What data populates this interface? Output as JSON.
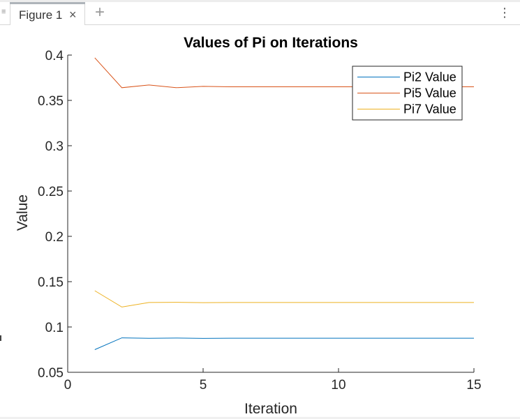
{
  "window": {
    "tab_title": "Figure 1",
    "close_glyph": "×",
    "add_glyph": "+",
    "menu_glyph": "⋮",
    "list_glyph": "≡"
  },
  "chart_data": {
    "type": "line",
    "title": "Values of Pi on Iterations",
    "xlabel": "Iteration",
    "ylabel": "Value",
    "xlim": [
      0,
      15
    ],
    "ylim": [
      0.05,
      0.4
    ],
    "xticks": [
      0,
      5,
      10,
      15
    ],
    "xtick_labels": [
      "0",
      "5",
      "10",
      "15"
    ],
    "yticks": [
      0.05,
      0.1,
      0.15,
      0.2,
      0.25,
      0.3,
      0.35,
      0.4
    ],
    "ytick_labels": [
      "0.05",
      "0.1",
      "0.15",
      "0.2",
      "0.25",
      "0.3",
      "0.35",
      "0.4"
    ],
    "grid": false,
    "legend_position": "top-right",
    "x": [
      1,
      2,
      3,
      4,
      5,
      6,
      7,
      8,
      9,
      10,
      11,
      12,
      13,
      14,
      15
    ],
    "series": [
      {
        "name": "Pi2 Value",
        "color": "#0072BD",
        "values": [
          0.075,
          0.088,
          0.0875,
          0.0878,
          0.0874,
          0.0876,
          0.0876,
          0.0876,
          0.0876,
          0.0876,
          0.0876,
          0.0876,
          0.0876,
          0.0876,
          0.0876
        ]
      },
      {
        "name": "Pi5 Value",
        "color": "#D95319",
        "values": [
          0.397,
          0.364,
          0.367,
          0.364,
          0.3655,
          0.365,
          0.365,
          0.365,
          0.365,
          0.365,
          0.365,
          0.365,
          0.365,
          0.365,
          0.365
        ]
      },
      {
        "name": "Pi7 Value",
        "color": "#EDB120",
        "values": [
          0.14,
          0.122,
          0.127,
          0.1272,
          0.1268,
          0.127,
          0.127,
          0.127,
          0.127,
          0.127,
          0.127,
          0.127,
          0.127,
          0.127,
          0.127
        ]
      }
    ]
  }
}
